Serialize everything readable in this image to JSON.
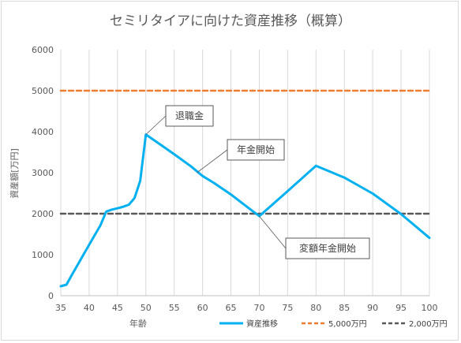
{
  "chart_data": {
    "type": "line",
    "title": "セミリタイアに向けた資産推移（概算）",
    "xlabel": "年齢",
    "ylabel": "資産額[万円]",
    "xlim": [
      35,
      100
    ],
    "ylim": [
      0,
      6000
    ],
    "x_ticks": [
      "35",
      "40",
      "45",
      "50",
      "55",
      "60",
      "65",
      "70",
      "75",
      "80",
      "85",
      "90",
      "95",
      "100"
    ],
    "y_ticks": [
      "0",
      "1000",
      "2000",
      "3000",
      "4000",
      "5000",
      "6000"
    ],
    "grid": "vertical",
    "legend_position": "bottom-right",
    "series": [
      {
        "name": "資産推移",
        "color": "#00b0f0",
        "style": "solid",
        "points": [
          [
            35,
            230
          ],
          [
            36,
            270
          ],
          [
            37,
            520
          ],
          [
            38,
            760
          ],
          [
            39,
            1000
          ],
          [
            40,
            1240
          ],
          [
            41,
            1480
          ],
          [
            42,
            1720
          ],
          [
            43,
            2050
          ],
          [
            44,
            2100
          ],
          [
            45,
            2130
          ],
          [
            46,
            2170
          ],
          [
            47,
            2220
          ],
          [
            48,
            2380
          ],
          [
            49,
            2800
          ],
          [
            50,
            3930
          ],
          [
            52,
            3740
          ],
          [
            55,
            3450
          ],
          [
            58,
            3150
          ],
          [
            60,
            2920
          ],
          [
            62,
            2750
          ],
          [
            65,
            2470
          ],
          [
            68,
            2150
          ],
          [
            70,
            1940
          ],
          [
            75,
            2550
          ],
          [
            80,
            3170
          ],
          [
            85,
            2880
          ],
          [
            90,
            2490
          ],
          [
            95,
            1990
          ],
          [
            100,
            1410
          ]
        ]
      },
      {
        "name": "5,000万円",
        "color": "#ed7d31",
        "style": "dashed",
        "points": [
          [
            35,
            5000
          ],
          [
            100,
            5000
          ]
        ]
      },
      {
        "name": "2,000万円",
        "color": "#595959",
        "style": "dashed",
        "points": [
          [
            35,
            2000
          ],
          [
            100,
            2000
          ]
        ]
      }
    ],
    "annotations": [
      {
        "text": "退職金",
        "x": 50,
        "y": 3930
      },
      {
        "text": "年金開始",
        "x": 59,
        "y": 3000
      },
      {
        "text": "変額年金開始",
        "x": 70,
        "y": 1940
      }
    ]
  }
}
